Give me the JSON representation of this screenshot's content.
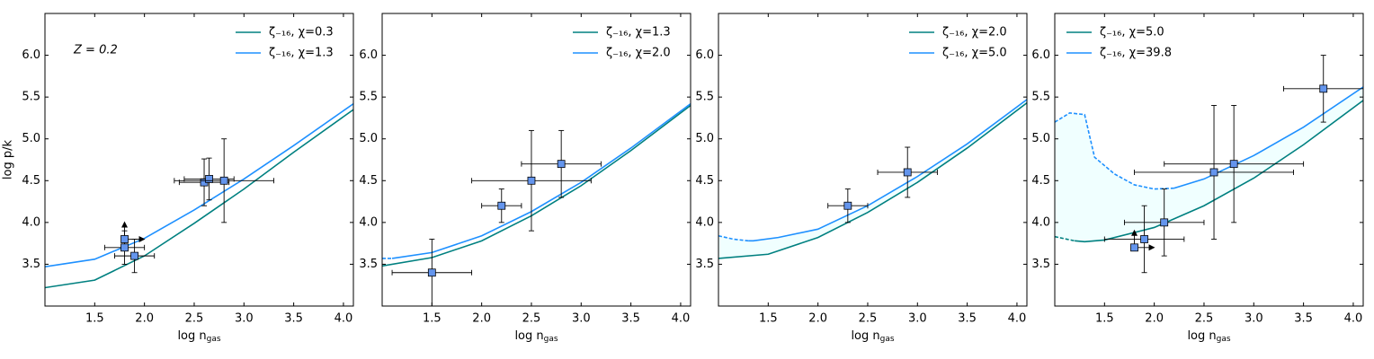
{
  "chart_data": [
    {
      "type": "line",
      "xlabel": "log n",
      "xlabel_sub": "gas",
      "ylabel": "log p/k",
      "annotation": "Z = 0.2",
      "xlim": [
        1.0,
        4.1
      ],
      "ylim": [
        3.0,
        6.5
      ],
      "xticks": [
        1.5,
        {
          "value": 2.0,
          "label": "2.0"
        },
        2.5,
        {
          "value": 3.0,
          "label": "3.0"
        },
        3.5,
        {
          "value": 4.0,
          "label": "4.0"
        }
      ],
      "yticks": [
        3.5,
        {
          "value": 4.0,
          "label": "4.0"
        },
        4.5,
        {
          "value": 5.0,
          "label": "5.0"
        },
        5.5,
        {
          "value": 6.0,
          "label": "6.0"
        }
      ],
      "legend": "upper right",
      "fill_between": false,
      "series": [
        {
          "name": "ζ₋₁₆, χ=0.3",
          "color": "#008080",
          "x": [
            1.0,
            1.5,
            2.0,
            2.5,
            3.0,
            3.5,
            4.1
          ],
          "values": [
            3.22,
            3.31,
            3.6,
            3.99,
            4.4,
            4.84,
            5.35
          ]
        },
        {
          "name": "ζ₋₁₆, χ=1.3",
          "color": "#1e90ff",
          "x": [
            1.0,
            1.5,
            2.0,
            2.5,
            3.0,
            3.5,
            4.1
          ],
          "values": [
            3.47,
            3.56,
            3.81,
            4.15,
            4.52,
            4.92,
            5.42
          ]
        }
      ],
      "points": {
        "color": "#6495ed",
        "x": [
          1.8,
          1.9,
          2.6,
          2.65,
          2.8
        ],
        "values": [
          3.7,
          3.6,
          4.48,
          4.52,
          4.5
        ],
        "xerr": [
          0.2,
          0.2,
          0.25,
          0.25,
          0.5
        ],
        "yerr": [
          0.2,
          0.2,
          0.28,
          0.25,
          0.5
        ]
      },
      "limits": {
        "x": [
          1.8
        ],
        "values": [
          3.8
        ]
      }
    },
    {
      "type": "line",
      "xlabel": "log n",
      "xlabel_sub": "gas",
      "xlim": [
        1.0,
        4.1
      ],
      "ylim": [
        3.0,
        6.5
      ],
      "xticks": [
        1.5,
        {
          "value": 2.0,
          "label": "2.0"
        },
        2.5,
        {
          "value": 3.0,
          "label": "3.0"
        },
        3.5,
        {
          "value": 4.0,
          "label": "4.0"
        }
      ],
      "yticks": [
        3.5,
        {
          "value": 4.0,
          "label": "4.0"
        },
        4.5,
        {
          "value": 5.0,
          "label": "5.0"
        },
        5.5,
        {
          "value": 6.0,
          "label": "6.0"
        }
      ],
      "legend": "upper right",
      "fill_between": false,
      "series": [
        {
          "name": "ζ₋₁₆, χ=1.3",
          "color": "#008080",
          "x": [
            1.0,
            1.5,
            2.0,
            2.5,
            3.0,
            3.5,
            4.1
          ],
          "values": [
            3.48,
            3.58,
            3.78,
            4.08,
            4.44,
            4.86,
            5.4
          ]
        },
        {
          "name": "ζ₋₁₆, χ=2.0",
          "color": "#1e90ff",
          "dashed_to": 1.1,
          "x": [
            1.0,
            1.1,
            1.5,
            2.0,
            2.5,
            3.0,
            3.5,
            4.1
          ],
          "values": [
            3.57,
            3.57,
            3.64,
            3.84,
            4.13,
            4.48,
            4.89,
            5.42
          ]
        }
      ],
      "points": {
        "color": "#6495ed",
        "x": [
          1.5,
          2.2,
          2.5,
          2.8
        ],
        "values": [
          3.4,
          4.2,
          4.5,
          4.7
        ],
        "xerr": [
          0.4,
          0.2,
          0.6,
          0.4
        ],
        "yerr": [
          0.4,
          0.2,
          0.6,
          0.4
        ]
      }
    },
    {
      "type": "line",
      "xlabel": "log n",
      "xlabel_sub": "gas",
      "xlim": [
        1.0,
        4.1
      ],
      "ylim": [
        3.0,
        6.5
      ],
      "xticks": [
        1.5,
        {
          "value": 2.0,
          "label": "2.0"
        },
        2.5,
        {
          "value": 3.0,
          "label": "3.0"
        },
        3.5,
        {
          "value": 4.0,
          "label": "4.0"
        }
      ],
      "yticks": [
        3.5,
        {
          "value": 4.0,
          "label": "4.0"
        },
        4.5,
        {
          "value": 5.0,
          "label": "5.0"
        },
        5.5,
        {
          "value": 6.0,
          "label": "6.0"
        }
      ],
      "legend": "upper right",
      "fill_between": true,
      "fill_color": "#f0ffff",
      "series": [
        {
          "name": "ζ₋₁₆, χ=2.0",
          "color": "#008080",
          "x": [
            1.0,
            1.5,
            2.0,
            2.5,
            3.0,
            3.5,
            4.1
          ],
          "values": [
            3.57,
            3.62,
            3.82,
            4.12,
            4.48,
            4.89,
            5.43
          ]
        },
        {
          "name": "ζ₋₁₆, χ=5.0",
          "color": "#1e90ff",
          "dashed_to": 1.3,
          "x": [
            1.0,
            1.15,
            1.3,
            1.35,
            1.6,
            2.0,
            2.5,
            3.0,
            3.5,
            4.1
          ],
          "values": [
            3.84,
            3.8,
            3.78,
            3.78,
            3.82,
            3.92,
            4.2,
            4.55,
            4.94,
            5.47
          ]
        }
      ],
      "points": {
        "color": "#6495ed",
        "x": [
          2.3,
          2.9
        ],
        "values": [
          4.2,
          4.6
        ],
        "xerr": [
          0.2,
          0.3
        ],
        "yerr": [
          0.2,
          0.3
        ]
      }
    },
    {
      "type": "line",
      "xlabel": "log n",
      "xlabel_sub": "gas",
      "xlim": [
        1.0,
        4.1
      ],
      "ylim": [
        3.0,
        6.5
      ],
      "xticks": [
        1.5,
        {
          "value": 2.0,
          "label": "2.0"
        },
        2.5,
        {
          "value": 3.0,
          "label": "3.0"
        },
        3.5,
        {
          "value": 4.0,
          "label": "4.0"
        }
      ],
      "yticks": [
        3.5,
        {
          "value": 4.0,
          "label": "4.0"
        },
        4.5,
        {
          "value": 5.0,
          "label": "5.0"
        },
        5.5,
        {
          "value": 6.0,
          "label": "6.0"
        }
      ],
      "legend": "upper left",
      "fill_between": true,
      "fill_color": "#f0ffff",
      "series": [
        {
          "name": "ζ₋₁₆, χ=5.0",
          "color": "#008080",
          "dashed_to": 1.2,
          "x": [
            1.0,
            1.2,
            1.3,
            1.5,
            2.0,
            2.5,
            3.0,
            3.5,
            4.1
          ],
          "values": [
            3.83,
            3.78,
            3.77,
            3.79,
            3.94,
            4.2,
            4.53,
            4.93,
            5.46
          ]
        },
        {
          "name": "ζ₋₁₆, χ=39.8",
          "color": "#1e90ff",
          "dashed_to": 2.2,
          "x": [
            1.0,
            1.15,
            1.3,
            1.4,
            1.6,
            1.8,
            2.0,
            2.2,
            2.5,
            3.0,
            3.5,
            4.1
          ],
          "values": [
            5.2,
            5.31,
            5.29,
            4.78,
            4.58,
            4.45,
            4.4,
            4.41,
            4.52,
            4.8,
            5.14,
            5.62
          ]
        }
      ],
      "points": {
        "color": "#6495ed",
        "x": [
          1.9,
          2.1,
          2.6,
          2.8,
          3.7
        ],
        "values": [
          3.8,
          4.0,
          4.6,
          4.7,
          5.6
        ],
        "xerr": [
          0.4,
          0.4,
          0.8,
          0.7,
          0.4
        ],
        "yerr": [
          0.4,
          0.4,
          0.8,
          0.7,
          0.4
        ]
      },
      "limits": {
        "x": [
          1.8
        ],
        "values": [
          3.7
        ]
      }
    }
  ]
}
